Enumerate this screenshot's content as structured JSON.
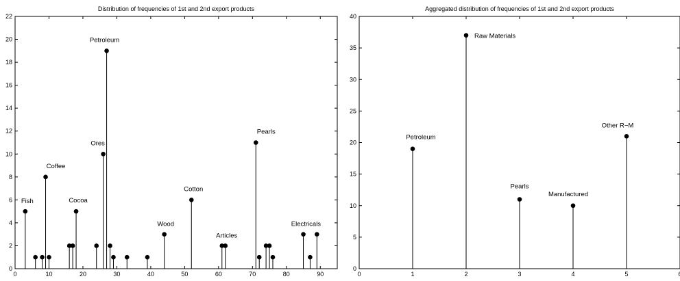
{
  "chart_data": [
    {
      "type": "scatter",
      "style": "stem",
      "title": "Distribution of frequencies of 1st and 2nd export products",
      "xlabel": "",
      "ylabel": "",
      "xlim": [
        0,
        95
      ],
      "ylim": [
        0,
        22
      ],
      "xticks": [
        0,
        10,
        20,
        30,
        40,
        50,
        60,
        70,
        80,
        90
      ],
      "yticks": [
        0,
        2,
        4,
        6,
        8,
        10,
        12,
        14,
        16,
        18,
        20,
        22
      ],
      "grid": false,
      "x": [
        3,
        6,
        8,
        9,
        10,
        16,
        17,
        18,
        24,
        26,
        27,
        28,
        29,
        33,
        39,
        44,
        52,
        61,
        62,
        71,
        72,
        74,
        75,
        76,
        85,
        87,
        89
      ],
      "y": [
        5,
        1,
        1,
        8,
        1,
        2,
        2,
        5,
        2,
        10,
        19,
        2,
        1,
        1,
        1,
        3,
        6,
        2,
        2,
        11,
        1,
        2,
        2,
        1,
        3,
        1,
        3
      ],
      "annotations": [
        {
          "text": "Fish",
          "x": 3,
          "y": 5
        },
        {
          "text": "Coffee",
          "x": 9,
          "y": 8
        },
        {
          "text": "Cocoa",
          "x": 18,
          "y": 5
        },
        {
          "text": "Ores",
          "x": 26,
          "y": 10
        },
        {
          "text": "Petroleum",
          "x": 27,
          "y": 19
        },
        {
          "text": "Wood",
          "x": 44,
          "y": 3
        },
        {
          "text": "Cotton",
          "x": 52,
          "y": 6
        },
        {
          "text": "Articles",
          "x": 62,
          "y": 2
        },
        {
          "text": "Pearls",
          "x": 71,
          "y": 11
        },
        {
          "text": "Electricals",
          "x": 87,
          "y": 3
        }
      ]
    },
    {
      "type": "scatter",
      "style": "stem",
      "title": "Aggregated distribution of frequencies of 1st and 2nd export products",
      "xlabel": "",
      "ylabel": "",
      "xlim": [
        0,
        6
      ],
      "ylim": [
        0,
        40
      ],
      "xticks": [
        0,
        1,
        2,
        3,
        4,
        5,
        6
      ],
      "yticks": [
        0,
        5,
        10,
        15,
        20,
        25,
        30,
        35,
        40
      ],
      "grid": false,
      "x": [
        1,
        2,
        3,
        4,
        5
      ],
      "y": [
        19,
        37,
        11,
        10,
        21
      ],
      "annotations": [
        {
          "text": "Petroleum",
          "x": 1,
          "y": 19
        },
        {
          "text": "Raw Materials",
          "x": 2,
          "y": 37
        },
        {
          "text": "Pearls",
          "x": 3,
          "y": 11
        },
        {
          "text": "Manufactured",
          "x": 4,
          "y": 10
        },
        {
          "text": "Other R−M",
          "x": 5,
          "y": 21
        }
      ]
    }
  ]
}
